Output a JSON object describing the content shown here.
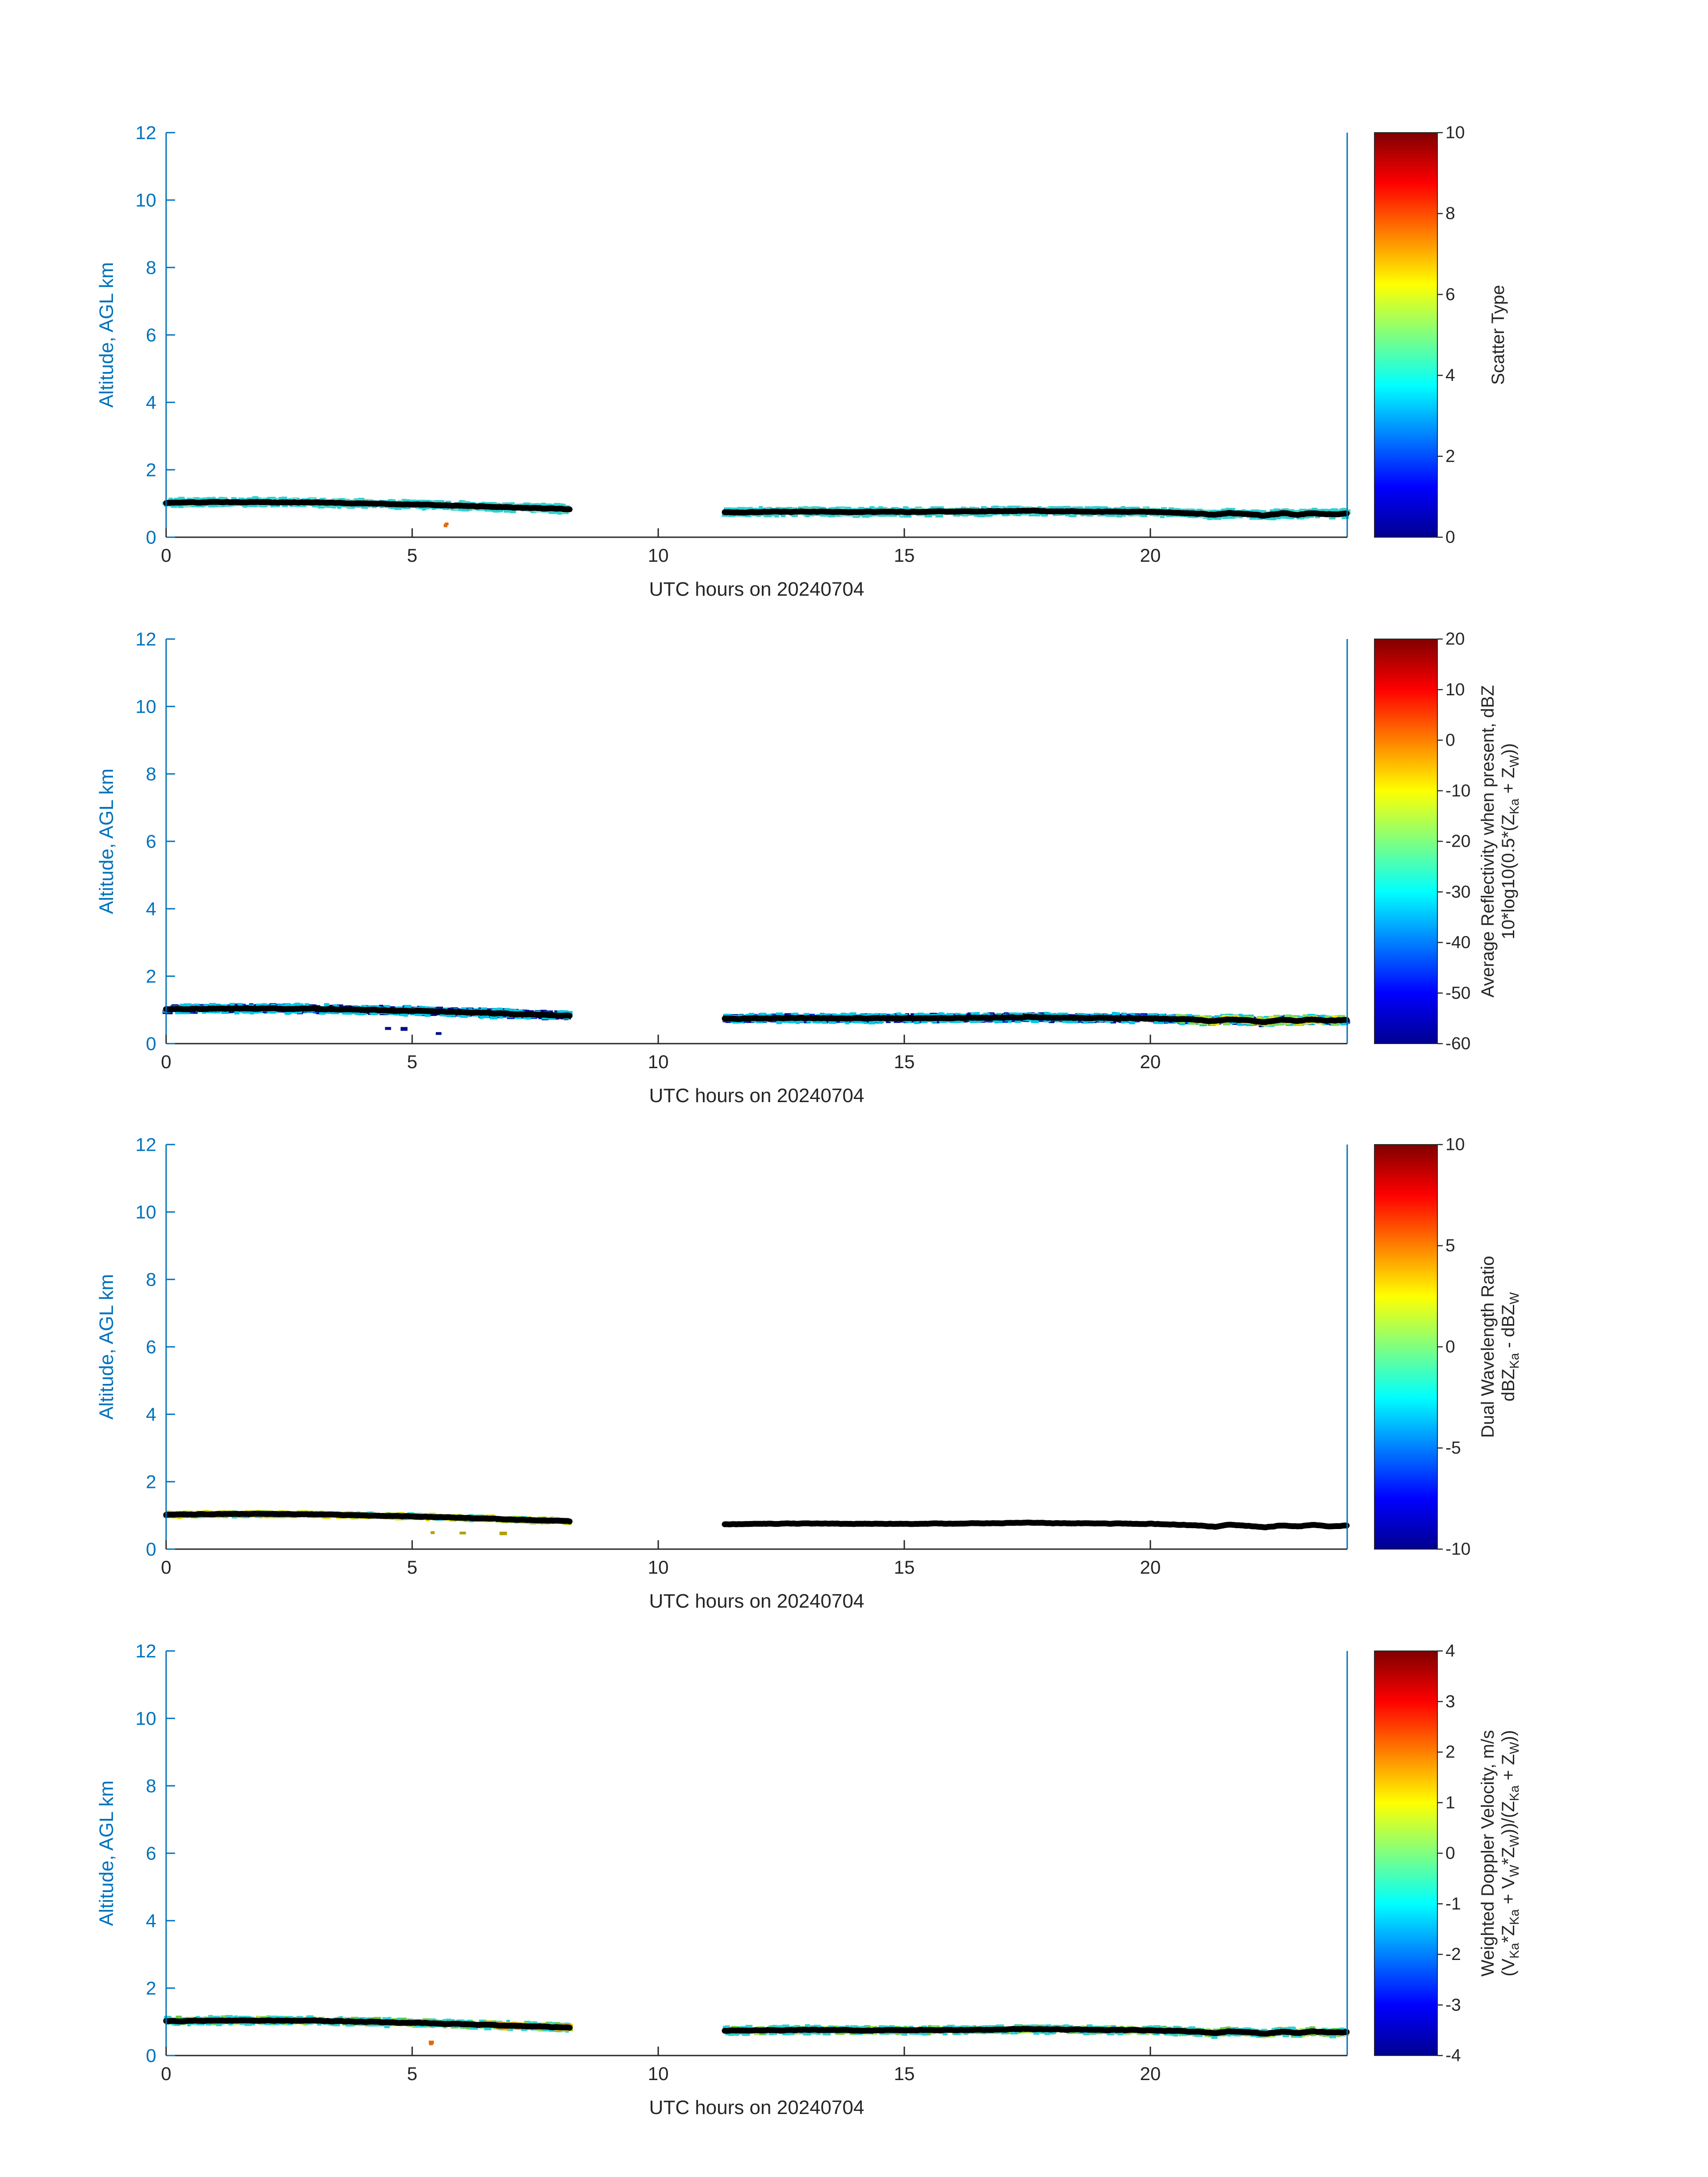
{
  "figure": {
    "background": "#ffffff",
    "y_axis_color": "#0072bd",
    "x_axis_color": "#262626",
    "colorbar_text_color": "#262626",
    "band_line_color": "#000000",
    "colormap_jet": [
      "#00008f",
      "#0000ff",
      "#00ffff",
      "#ffff00",
      "#ff0000",
      "#800000"
    ],
    "colormap_positions": [
      0,
      0.125,
      0.375,
      0.625,
      0.875,
      1
    ]
  },
  "chart_data": [
    {
      "type": "heatmap",
      "panel": 1,
      "xlabel": "UTC hours on 20240704",
      "ylabel": "Altitude, AGL km",
      "xlim": [
        0,
        24
      ],
      "ylim": [
        0,
        12
      ],
      "xticks": [
        0,
        5,
        10,
        15,
        20
      ],
      "yticks": [
        0,
        2,
        4,
        6,
        8,
        10,
        12
      ],
      "colorbar": {
        "label_lines": [
          "Scatter Type"
        ],
        "range": [
          0,
          10
        ],
        "ticks": [
          0,
          2,
          4,
          6,
          8,
          10
        ]
      },
      "series": [
        {
          "name": "cloud-layer-height-km",
          "segments": [
            {
              "x": [
                0,
                0.5,
                1,
                2,
                3,
                4,
                5,
                6,
                6.5,
                7,
                7.5,
                8,
                8.2
              ],
              "y": [
                1.02,
                1.03,
                1.04,
                1.04,
                1.03,
                1.0,
                0.97,
                0.93,
                0.91,
                0.88,
                0.86,
                0.84,
                0.82
              ]
            },
            {
              "x": [
                11.35,
                11.6,
                12,
                13,
                14,
                15,
                16,
                17,
                17.5,
                18,
                19,
                20,
                20.5,
                21,
                21.3,
                21.6,
                22,
                22.3,
                22.7,
                23,
                23.3,
                23.6,
                24
              ],
              "y": [
                0.74,
                0.74,
                0.75,
                0.76,
                0.75,
                0.75,
                0.76,
                0.77,
                0.79,
                0.77,
                0.76,
                0.75,
                0.73,
                0.7,
                0.66,
                0.72,
                0.69,
                0.64,
                0.71,
                0.67,
                0.72,
                0.68,
                0.7
              ]
            }
          ]
        }
      ],
      "speckles": [
        {
          "color": "#2fd0d0",
          "count": 1600,
          "spread": 0.1
        },
        {
          "color": "#7fe0c0",
          "count": 200,
          "spread": 0.07
        },
        {
          "color": "#e06a10",
          "count": 2,
          "t_range": [
            5.2,
            5.8
          ],
          "alt_range": [
            0.28,
            0.4
          ]
        }
      ],
      "line_noise": 0.018
    },
    {
      "type": "heatmap",
      "panel": 2,
      "xlabel": "UTC hours on 20240704",
      "ylabel": "Altitude, AGL km",
      "xlim": [
        0,
        24
      ],
      "ylim": [
        0,
        12
      ],
      "xticks": [
        0,
        5,
        10,
        15,
        20
      ],
      "yticks": [
        0,
        2,
        4,
        6,
        8,
        10,
        12
      ],
      "colorbar": {
        "label_lines": [
          "Average Reflectivity when present, dBZ",
          "10*log10(0.5*(Z_{Ka} + Z_{W}))"
        ],
        "range": [
          -60,
          20
        ],
        "ticks": [
          -60,
          -50,
          -40,
          -30,
          -20,
          -10,
          0,
          10,
          20
        ]
      },
      "series": [
        {
          "name": "cloud-layer-height-km",
          "segments": [
            {
              "x": [
                0,
                0.5,
                1,
                2,
                3,
                4,
                5,
                6,
                6.5,
                7,
                7.5,
                8,
                8.2
              ],
              "y": [
                1.02,
                1.03,
                1.04,
                1.04,
                1.03,
                1.0,
                0.97,
                0.93,
                0.91,
                0.88,
                0.86,
                0.84,
                0.82
              ]
            },
            {
              "x": [
                11.35,
                11.6,
                12,
                13,
                14,
                15,
                16,
                17,
                17.5,
                18,
                19,
                20,
                20.5,
                21,
                21.3,
                21.6,
                22,
                22.3,
                22.7,
                23,
                23.3,
                23.6,
                24
              ],
              "y": [
                0.74,
                0.74,
                0.75,
                0.76,
                0.75,
                0.75,
                0.76,
                0.77,
                0.79,
                0.77,
                0.76,
                0.75,
                0.73,
                0.7,
                0.66,
                0.72,
                0.69,
                0.64,
                0.71,
                0.67,
                0.72,
                0.68,
                0.7
              ]
            }
          ]
        }
      ],
      "speckles": [
        {
          "color": "#000d8f",
          "count": 1100,
          "spread": 0.09
        },
        {
          "color": "#0033e0",
          "count": 600,
          "spread": 0.08
        },
        {
          "color": "#00c8e8",
          "count": 800,
          "spread": 0.11
        },
        {
          "color": "#7ddb5a",
          "count": 120,
          "spread": 0.1,
          "t_range": [
            20.5,
            24
          ]
        },
        {
          "color": "#ffe100",
          "count": 60,
          "spread": 0.08,
          "t_range": [
            21,
            24
          ]
        },
        {
          "color": "#000d8f",
          "count": 3,
          "t_range": [
            3.5,
            7.5
          ],
          "alt_range": [
            0.25,
            0.45
          ]
        }
      ],
      "line_noise": 0.02
    },
    {
      "type": "heatmap",
      "panel": 3,
      "xlabel": "UTC hours on 20240704",
      "ylabel": "Altitude, AGL km",
      "xlim": [
        0,
        24
      ],
      "ylim": [
        0,
        12
      ],
      "xticks": [
        0,
        5,
        10,
        15,
        20
      ],
      "yticks": [
        0,
        2,
        4,
        6,
        8,
        10,
        12
      ],
      "colorbar": {
        "label_lines": [
          "Dual Wavelength Ratio",
          "dBZ_{Ka} - dBZ_{W}"
        ],
        "range": [
          -10,
          10
        ],
        "ticks": [
          -10,
          -5,
          0,
          5,
          10
        ]
      },
      "series": [
        {
          "name": "cloud-layer-height-km",
          "segments": [
            {
              "x": [
                0,
                0.5,
                1,
                2,
                3,
                4,
                5,
                6,
                6.5,
                7,
                7.5,
                8,
                8.2
              ],
              "y": [
                1.02,
                1.03,
                1.04,
                1.04,
                1.03,
                1.0,
                0.97,
                0.93,
                0.91,
                0.88,
                0.86,
                0.84,
                0.82
              ]
            },
            {
              "x": [
                11.35,
                11.6,
                12,
                13,
                14,
                15,
                16,
                17,
                17.5,
                18,
                19,
                20,
                20.5,
                21,
                21.3,
                21.6,
                22,
                22.3,
                22.7,
                23,
                23.3,
                23.6,
                24
              ],
              "y": [
                0.74,
                0.74,
                0.75,
                0.76,
                0.75,
                0.75,
                0.76,
                0.77,
                0.79,
                0.77,
                0.76,
                0.75,
                0.73,
                0.7,
                0.66,
                0.72,
                0.69,
                0.64,
                0.71,
                0.67,
                0.72,
                0.68,
                0.7
              ]
            }
          ]
        }
      ],
      "speckles": [
        {
          "color": "#d8d800",
          "count": 420,
          "spread": 0.055,
          "segments": [
            0
          ]
        },
        {
          "color": "#8fd13f",
          "count": 160,
          "spread": 0.05,
          "segments": [
            0
          ]
        },
        {
          "color": "#2fd0d0",
          "count": 60,
          "spread": 0.06,
          "segments": [
            0
          ]
        },
        {
          "color": "#b0a000",
          "count": 3,
          "t_range": [
            3.0,
            7.0
          ],
          "alt_range": [
            0.3,
            0.5
          ]
        }
      ],
      "line_noise": 0.015
    },
    {
      "type": "heatmap",
      "panel": 4,
      "xlabel": "UTC hours on 20240704",
      "ylabel": "Altitude, AGL km",
      "xlim": [
        0,
        24
      ],
      "ylim": [
        0,
        12
      ],
      "xticks": [
        0,
        5,
        10,
        15,
        20
      ],
      "yticks": [
        0,
        2,
        4,
        6,
        8,
        10,
        12
      ],
      "colorbar": {
        "label_lines": [
          "Weighted Doppler Velocity, m/s",
          "(V_{Ka}*Z_{Ka} + V_{W}*Z_{W}))/(Z_{Ka} + Z_{W}))"
        ],
        "range": [
          -4,
          4
        ],
        "ticks": [
          -4,
          -3,
          -2,
          -1,
          0,
          1,
          2,
          3,
          4
        ]
      },
      "series": [
        {
          "name": "cloud-layer-height-km",
          "segments": [
            {
              "x": [
                0,
                0.5,
                1,
                2,
                3,
                4,
                5,
                6,
                6.5,
                7,
                7.5,
                8,
                8.2
              ],
              "y": [
                1.02,
                1.03,
                1.04,
                1.04,
                1.03,
                1.0,
                0.97,
                0.93,
                0.91,
                0.88,
                0.86,
                0.84,
                0.82
              ]
            },
            {
              "x": [
                11.35,
                11.6,
                12,
                13,
                14,
                15,
                16,
                17,
                17.5,
                18,
                19,
                20,
                20.5,
                21,
                21.3,
                21.6,
                22,
                22.3,
                22.7,
                23,
                23.3,
                23.6,
                24
              ],
              "y": [
                0.74,
                0.74,
                0.75,
                0.76,
                0.75,
                0.75,
                0.76,
                0.77,
                0.79,
                0.77,
                0.76,
                0.75,
                0.73,
                0.7,
                0.66,
                0.72,
                0.69,
                0.64,
                0.71,
                0.67,
                0.72,
                0.68,
                0.7
              ]
            }
          ]
        }
      ],
      "speckles": [
        {
          "color": "#5ecf3a",
          "count": 900,
          "spread": 0.08
        },
        {
          "color": "#b4e05a",
          "count": 350,
          "spread": 0.07
        },
        {
          "color": "#2fd0d0",
          "count": 600,
          "spread": 0.1
        },
        {
          "color": "#f0b400",
          "count": 50,
          "spread": 0.07,
          "t_range": [
            6.5,
            8.2
          ]
        },
        {
          "color": "#e06a10",
          "count": 2,
          "t_range": [
            5.2,
            6.0
          ],
          "alt_range": [
            0.28,
            0.4
          ]
        }
      ],
      "line_noise": 0.018
    }
  ]
}
